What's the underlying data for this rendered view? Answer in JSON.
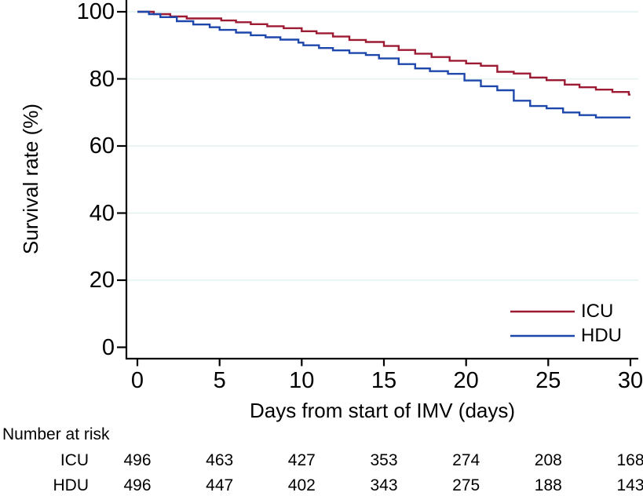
{
  "chart_data": {
    "type": "line",
    "subtype": "kaplan-meier-step",
    "title": "",
    "xlabel": "Days from start of IMV (days)",
    "ylabel": "Survival rate (%)",
    "xlim": [
      0,
      30
    ],
    "ylim": [
      0,
      100
    ],
    "xticks": [
      0,
      5,
      10,
      15,
      20,
      25,
      30
    ],
    "yticks": [
      0,
      20,
      40,
      60,
      80,
      100
    ],
    "grid": "horizontal",
    "gridline_values": [
      20,
      40,
      60,
      80,
      100
    ],
    "legend_position": "inside-lower-right",
    "colors": {
      "grid": "#e2f1f0",
      "axis": "#000000",
      "text": "#000000"
    },
    "series": [
      {
        "name": "ICU",
        "color": "#9d1a33",
        "step_points": [
          [
            0,
            100
          ],
          [
            1,
            99.3
          ],
          [
            2,
            98.6
          ],
          [
            3,
            98.0
          ],
          [
            5.1,
            97.4
          ],
          [
            6,
            96.9
          ],
          [
            6.9,
            96.3
          ],
          [
            7.9,
            95.7
          ],
          [
            8.9,
            95.1
          ],
          [
            10,
            94.2
          ],
          [
            10.9,
            93.6
          ],
          [
            11.9,
            92.6
          ],
          [
            12.9,
            91.6
          ],
          [
            13.9,
            91.0
          ],
          [
            15,
            89.8
          ],
          [
            15.9,
            88.6
          ],
          [
            16.9,
            87.5
          ],
          [
            17.9,
            86.5
          ],
          [
            19,
            85.4
          ],
          [
            20,
            84.6
          ],
          [
            20.9,
            83.9
          ],
          [
            21.9,
            82.1
          ],
          [
            22.9,
            81.6
          ],
          [
            23.9,
            80.4
          ],
          [
            24.9,
            79.6
          ],
          [
            26,
            78.3
          ],
          [
            26.9,
            77.5
          ],
          [
            27.9,
            76.8
          ],
          [
            28.9,
            76.1
          ],
          [
            29.9,
            75.3
          ]
        ]
      },
      {
        "name": "HDU",
        "color": "#1e47ac",
        "step_points": [
          [
            0,
            100
          ],
          [
            0.7,
            99.3
          ],
          [
            1.4,
            98.4
          ],
          [
            2.4,
            97.2
          ],
          [
            3.4,
            96.2
          ],
          [
            4.4,
            95.4
          ],
          [
            5,
            94.6
          ],
          [
            6,
            93.8
          ],
          [
            6.9,
            93.0
          ],
          [
            7.8,
            92.4
          ],
          [
            8.7,
            91.7
          ],
          [
            9.8,
            90.8
          ],
          [
            10.1,
            90.0
          ],
          [
            11.05,
            89.2
          ],
          [
            11.9,
            88.5
          ],
          [
            12.9,
            87.7
          ],
          [
            13.9,
            87.1
          ],
          [
            14.7,
            86.1
          ],
          [
            15.9,
            84.4
          ],
          [
            16.9,
            83.1
          ],
          [
            17.8,
            82.3
          ],
          [
            18.9,
            81.5
          ],
          [
            19.9,
            79.5
          ],
          [
            20.9,
            77.8
          ],
          [
            21.9,
            76.6
          ],
          [
            22.9,
            73.5
          ],
          [
            23.9,
            71.9
          ],
          [
            24.9,
            71.2
          ],
          [
            25.9,
            70.0
          ],
          [
            26.9,
            69.2
          ],
          [
            27.9,
            68.5
          ]
        ]
      }
    ]
  },
  "risk_table": {
    "header": "Number at risk",
    "times": [
      0,
      5,
      10,
      15,
      20,
      25,
      30
    ],
    "rows": [
      {
        "label": "ICU",
        "values": [
          "496",
          "463",
          "427",
          "353",
          "274",
          "208",
          "168"
        ]
      },
      {
        "label": "HDU",
        "values": [
          "496",
          "447",
          "402",
          "343",
          "275",
          "188",
          "143"
        ]
      }
    ]
  }
}
